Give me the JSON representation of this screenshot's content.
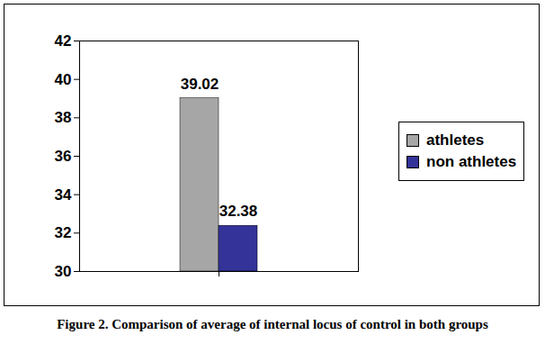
{
  "chart_data": {
    "type": "bar",
    "title": "Figure 2. Comparison of average of internal locus of control in both groups",
    "categories": [
      null
    ],
    "series": [
      {
        "name": "athletes",
        "color": "#a6a6a6",
        "values": [
          39.02
        ]
      },
      {
        "name": "non athletes",
        "color": "#333399",
        "values": [
          32.38
        ]
      }
    ],
    "ylim": [
      30,
      42
    ],
    "yticks": [
      30,
      32,
      34,
      36,
      38,
      40,
      42
    ],
    "data_labels": true,
    "legend": "right",
    "grid": false
  }
}
